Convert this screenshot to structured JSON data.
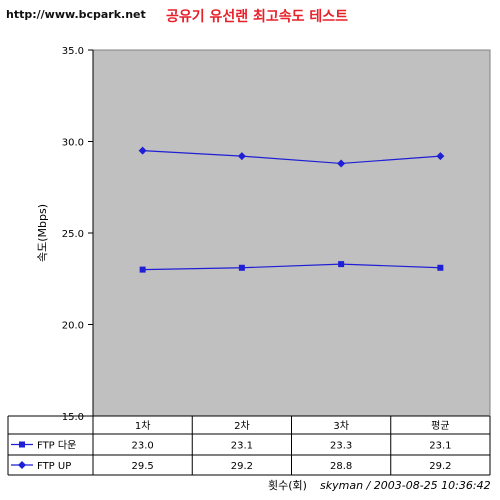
{
  "watermark": "http://www.bcpark.net",
  "footer": {
    "axis_title": "횟수(회)",
    "credit": "skyman / 2003-08-25 10:36:42"
  },
  "colors": {
    "title": "#e8202a",
    "plot_bg": "#c0c0c0",
    "series": "#1f1fd6",
    "grid": "#000000"
  },
  "chart_data": {
    "type": "line",
    "title": "공유기 유선랜 최고속도 테스트",
    "xlabel": "",
    "ylabel": "속도(Mbps)",
    "ylim": [
      15.0,
      35.0
    ],
    "yticks": [
      "15.0",
      "20.0",
      "25.0",
      "30.0",
      "35.0"
    ],
    "categories": [
      "1차",
      "2차",
      "3차",
      "평균"
    ],
    "grid": false,
    "legend": "data-table",
    "series": [
      {
        "name": "FTP 다운",
        "values": [
          23.0,
          23.1,
          23.3,
          23.1
        ],
        "labels": [
          "23.0",
          "23.1",
          "23.3",
          "23.1"
        ]
      },
      {
        "name": "FTP UP",
        "values": [
          29.5,
          29.2,
          28.8,
          29.2
        ],
        "labels": [
          "29.5",
          "29.2",
          "28.8",
          "29.2"
        ]
      }
    ]
  }
}
